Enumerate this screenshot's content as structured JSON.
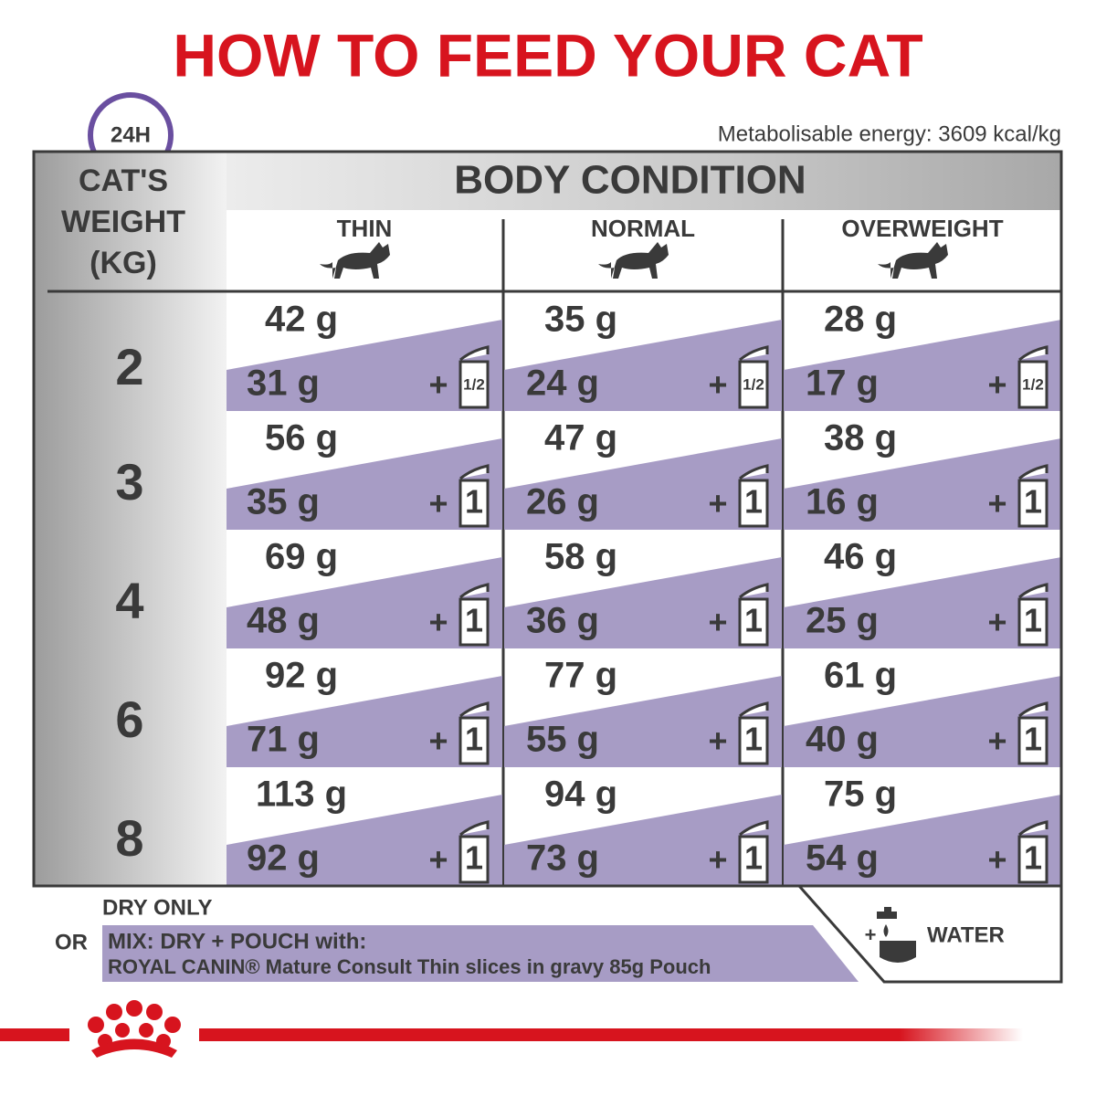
{
  "header": {
    "title": "HOW TO FEED YOUR CAT",
    "badge": "24H",
    "energy": "Metabolisable energy: 3609 kcal/kg"
  },
  "table": {
    "weight_header": [
      "CAT'S",
      "WEIGHT",
      "(KG)"
    ],
    "condition_header": "BODY CONDITION",
    "columns": [
      "THIN",
      "NORMAL",
      "OVERWEIGHT"
    ],
    "plus": "+",
    "rows": [
      {
        "weight": "2",
        "cells": [
          {
            "dry": "42 g",
            "mix": "31 g",
            "pouch": "1/2"
          },
          {
            "dry": "35 g",
            "mix": "24 g",
            "pouch": "1/2"
          },
          {
            "dry": "28 g",
            "mix": "17 g",
            "pouch": "1/2"
          }
        ]
      },
      {
        "weight": "3",
        "cells": [
          {
            "dry": "56 g",
            "mix": "35 g",
            "pouch": "1"
          },
          {
            "dry": "47 g",
            "mix": "26 g",
            "pouch": "1"
          },
          {
            "dry": "38 g",
            "mix": "16 g",
            "pouch": "1"
          }
        ]
      },
      {
        "weight": "4",
        "cells": [
          {
            "dry": "69 g",
            "mix": "48 g",
            "pouch": "1"
          },
          {
            "dry": "58 g",
            "mix": "36 g",
            "pouch": "1"
          },
          {
            "dry": "46 g",
            "mix": "25 g",
            "pouch": "1"
          }
        ]
      },
      {
        "weight": "6",
        "cells": [
          {
            "dry": "92 g",
            "mix": "71 g",
            "pouch": "1"
          },
          {
            "dry": "77 g",
            "mix": "55 g",
            "pouch": "1"
          },
          {
            "dry": "61 g",
            "mix": "40 g",
            "pouch": "1"
          }
        ]
      },
      {
        "weight": "8",
        "cells": [
          {
            "dry": "113 g",
            "mix": "92 g",
            "pouch": "1"
          },
          {
            "dry": "94 g",
            "mix": "73 g",
            "pouch": "1"
          },
          {
            "dry": "75 g",
            "mix": "54 g",
            "pouch": "1"
          }
        ]
      }
    ]
  },
  "footer": {
    "dry_only": "DRY ONLY",
    "or": "OR",
    "mix": "MIX: DRY + POUCH with:",
    "product": "ROYAL CANIN® Mature Consult Thin slices in gravy 85g Pouch",
    "water": "WATER"
  }
}
